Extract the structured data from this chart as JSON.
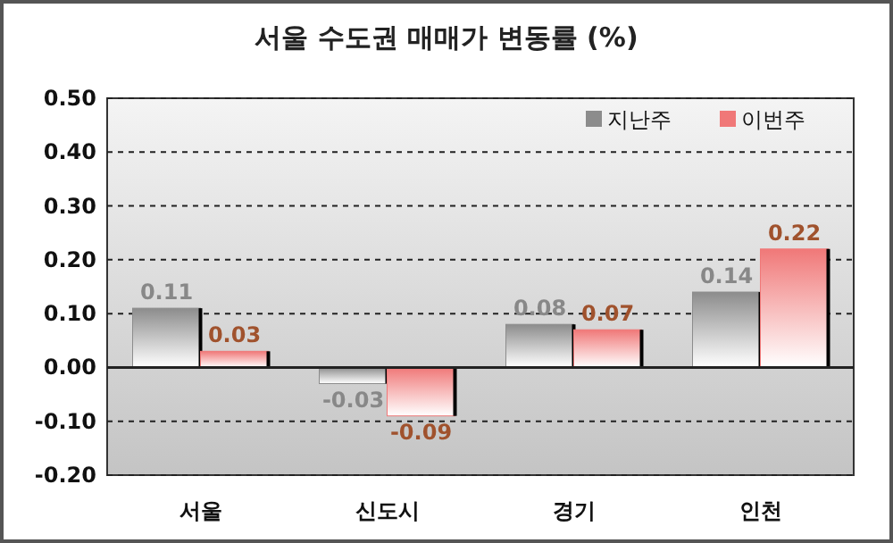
{
  "chart_data": {
    "type": "bar",
    "title": "서울 수도권 매매가 변동률 (%)",
    "categories": [
      "서울",
      "신도시",
      "경기",
      "인천"
    ],
    "series": [
      {
        "name": "지난주",
        "color": "#8c8c8c",
        "values": [
          0.11,
          -0.03,
          0.08,
          0.14
        ]
      },
      {
        "name": "이번주",
        "color": "#f07878",
        "values": [
          0.03,
          -0.09,
          0.07,
          0.22
        ]
      }
    ],
    "ylim": [
      -0.2,
      0.5
    ],
    "yticks": [
      {
        "value": -0.2,
        "label": "-0.20"
      },
      {
        "value": -0.1,
        "label": "-0.10"
      },
      {
        "value": 0,
        "label": "0.00"
      },
      {
        "value": 0.1,
        "label": "0.10"
      },
      {
        "value": 0.2,
        "label": "0.20"
      },
      {
        "value": 0.3,
        "label": "0.30"
      },
      {
        "value": 0.4,
        "label": "0.40"
      },
      {
        "value": 0.5,
        "label": "0.50"
      }
    ],
    "grid": "y",
    "legend": "top right",
    "data_labels": true
  }
}
